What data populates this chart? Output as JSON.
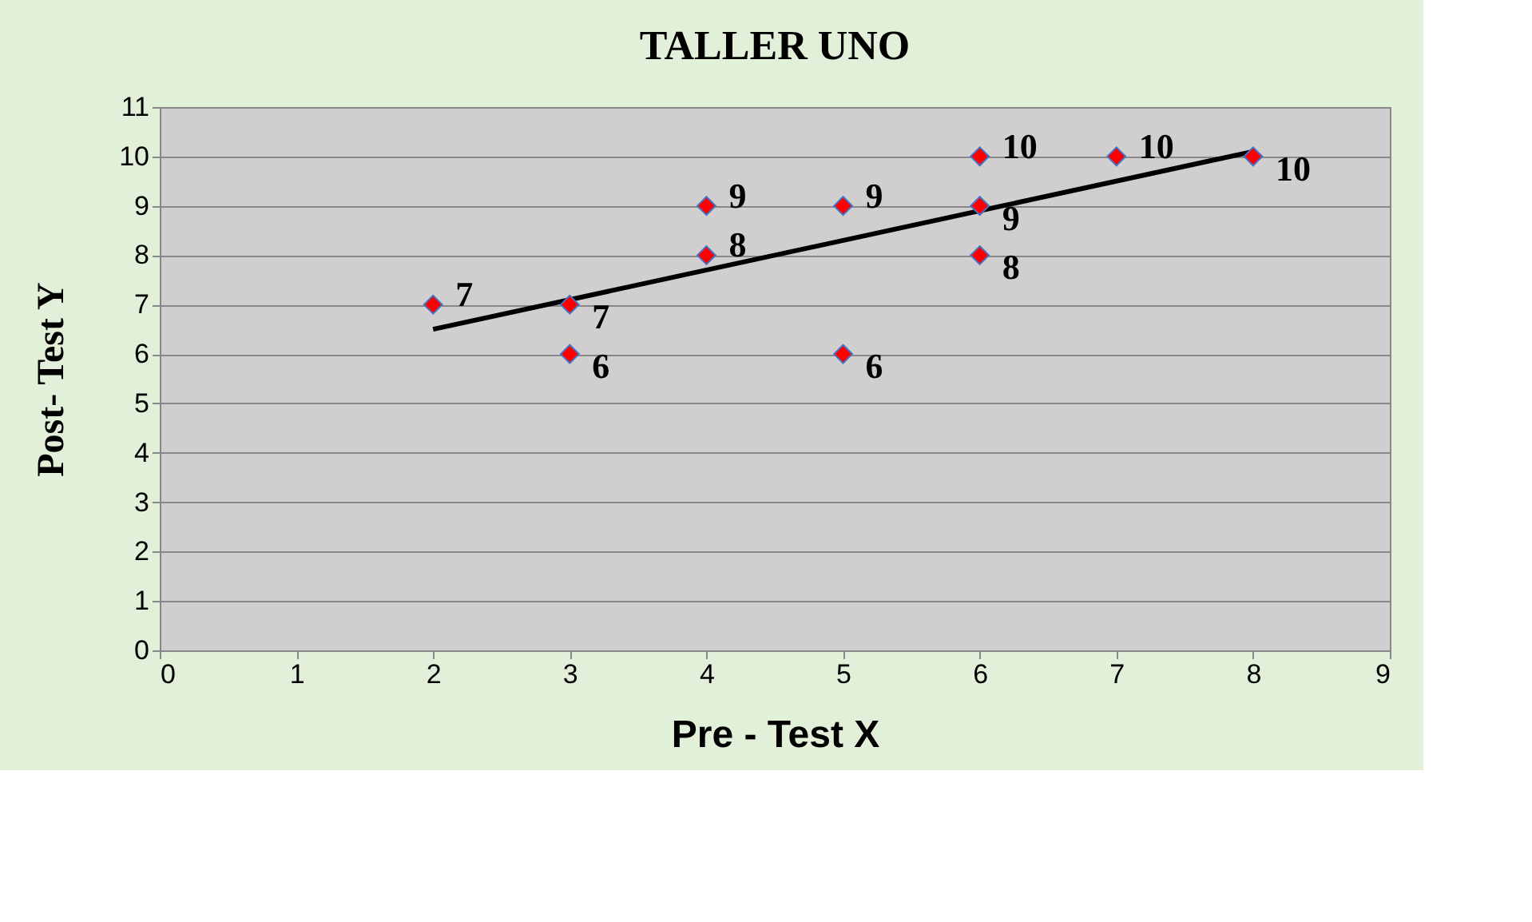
{
  "chart_data": {
    "type": "scatter",
    "title": "TALLER UNO",
    "xlabel": "Pre - Test X",
    "ylabel": "Post- Test Y",
    "series": [
      {
        "type": "scatter",
        "marker": "diamond",
        "color": "#ff0000",
        "x": [
          2,
          3,
          3,
          4,
          4,
          5,
          5,
          6,
          6,
          6,
          7,
          8
        ],
        "values": [
          7,
          7,
          6,
          9,
          8,
          9,
          6,
          10,
          9,
          8,
          10,
          10
        ],
        "value_labels": [
          "7",
          "7",
          "6",
          "9",
          "8",
          "9",
          "6",
          "10",
          "9",
          "8",
          "10",
          "10"
        ]
      },
      {
        "type": "line",
        "color": "#000000",
        "x": [
          2,
          8
        ],
        "values": [
          6.5,
          10.1
        ],
        "marker": "none",
        "line_style": "solid"
      }
    ],
    "xlim": [
      0,
      9
    ],
    "xticks": [
      0,
      1,
      2,
      3,
      4,
      5,
      6,
      7,
      8,
      9
    ],
    "ylim": [
      0,
      11
    ],
    "yticks": [
      0,
      1,
      2,
      3,
      4,
      5,
      6,
      7,
      8,
      9,
      10,
      11
    ],
    "grid": "y"
  }
}
